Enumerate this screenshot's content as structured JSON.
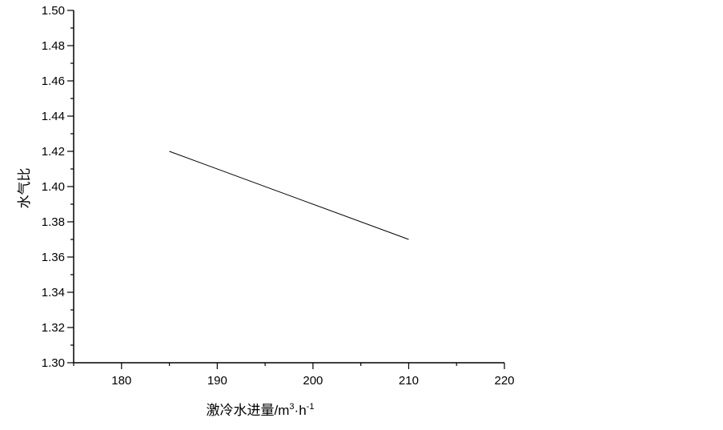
{
  "chart_data": {
    "type": "line",
    "xlabel": "激冷水进量/m",
    "xlabel_sup1": "3",
    "xlabel_mid": "·h",
    "xlabel_sup2": "-1",
    "ylabel": "水气比",
    "xlim": [
      175,
      220
    ],
    "ylim": [
      1.3,
      1.5
    ],
    "xticks": [
      180,
      190,
      200,
      210,
      220
    ],
    "yticks": [
      "1.30",
      "1.32",
      "1.34",
      "1.36",
      "1.38",
      "1.40",
      "1.42",
      "1.44",
      "1.46",
      "1.48",
      "1.50"
    ],
    "grid": false,
    "series": [
      {
        "x": [
          185,
          210
        ],
        "y": [
          1.42,
          1.37
        ],
        "color": "#000000"
      }
    ]
  }
}
